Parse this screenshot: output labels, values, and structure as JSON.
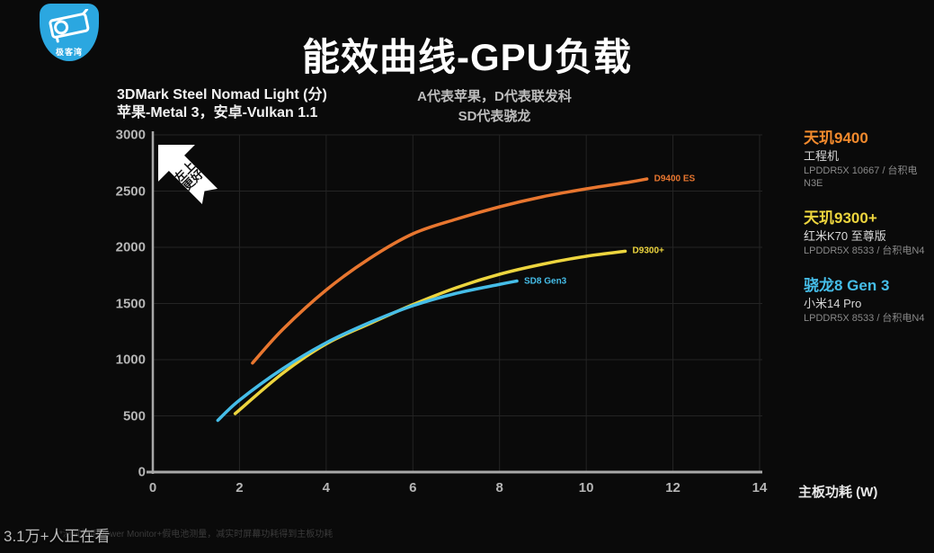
{
  "logo": {
    "name": "极客湾",
    "color": "#2BA7E0"
  },
  "header": {
    "title": "能效曲线-GPU负载",
    "note_line1": "A代表苹果，D代表联发科",
    "note_line2": "SD代表骁龙"
  },
  "chart": {
    "benchmark_line1": "3DMark Steel Nomad Light (分)",
    "benchmark_line2": "苹果-Metal 3，安卓-Vulkan 1.1",
    "stamp_line1": "左上",
    "stamp_line2": "更好",
    "xlabel": "主板功耗 (W)"
  },
  "chart_data": {
    "type": "line",
    "title": "能效曲线-GPU负载",
    "xlabel": "主板功耗 (W)",
    "ylabel": "3DMark Steel Nomad Light (分)",
    "xlim": [
      0,
      14
    ],
    "ylim": [
      0,
      3000
    ],
    "xticks": [
      0,
      2,
      4,
      6,
      8,
      10,
      12,
      14
    ],
    "yticks": [
      0,
      500,
      1000,
      1500,
      2000,
      2500,
      3000
    ],
    "grid": true,
    "legend_position": "right",
    "series": [
      {
        "name": "D9400 ES",
        "color": "#E8762F",
        "points": [
          [
            2.3,
            970
          ],
          [
            3,
            1270
          ],
          [
            4,
            1620
          ],
          [
            5,
            1900
          ],
          [
            6,
            2120
          ],
          [
            7,
            2250
          ],
          [
            8,
            2360
          ],
          [
            9,
            2450
          ],
          [
            10,
            2520
          ],
          [
            11,
            2580
          ],
          [
            11.4,
            2608
          ]
        ]
      },
      {
        "name": "D9300+",
        "color": "#EDD53E",
        "points": [
          [
            1.9,
            520
          ],
          [
            3,
            880
          ],
          [
            4,
            1140
          ],
          [
            5,
            1320
          ],
          [
            6,
            1490
          ],
          [
            7,
            1640
          ],
          [
            8,
            1760
          ],
          [
            9,
            1850
          ],
          [
            10,
            1920
          ],
          [
            10.9,
            1965
          ]
        ]
      },
      {
        "name": "SD8 Gen3",
        "color": "#45BDE8",
        "points": [
          [
            1.5,
            460
          ],
          [
            2,
            640
          ],
          [
            3,
            920
          ],
          [
            4,
            1150
          ],
          [
            5,
            1330
          ],
          [
            6,
            1480
          ],
          [
            7,
            1590
          ],
          [
            8,
            1670
          ],
          [
            8.4,
            1700
          ]
        ]
      }
    ]
  },
  "legend": [
    {
      "chip": "天玑9400",
      "color": "#F28A2D",
      "device": "工程机",
      "spec": "LPDDR5X 10667 / 台积电N3E"
    },
    {
      "chip": "天玑9300+",
      "color": "#EDD53E",
      "device": "红米K70 至尊版",
      "spec": "LPDDR5X 8533 / 台积电N4"
    },
    {
      "chip": "骁龙8 Gen 3",
      "color": "#45BDE8",
      "device": "小米14 Pro",
      "spec": "LPDDR5X 8533 / 台积电N4"
    }
  ],
  "footer": {
    "viewers": "3.1万+人正在看",
    "footnote": "*测试使用Power Monitor+假电池测量，减实时屏幕功耗得到主板功耗"
  },
  "colors": {
    "background": "#0a0a0a",
    "axis": "#a8a8a8",
    "grid": "#242424",
    "title": "#ffffff"
  }
}
